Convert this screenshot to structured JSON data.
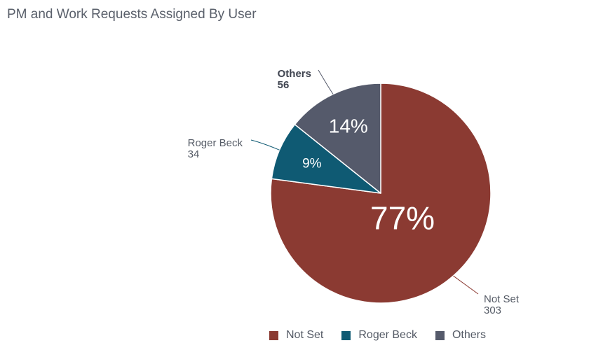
{
  "chart_data": {
    "type": "pie",
    "title": "PM and Work Requests Assigned By User",
    "slices": [
      {
        "name": "Not Set",
        "value": 303,
        "percent_label": "77%",
        "color": "#8b3a32"
      },
      {
        "name": "Roger Beck",
        "value": 34,
        "percent_label": "9%",
        "color": "#0f5a73"
      },
      {
        "name": "Others",
        "value": 56,
        "percent_label": "14%",
        "color": "#555a6b"
      }
    ],
    "legend": {
      "position": "bottom"
    }
  }
}
